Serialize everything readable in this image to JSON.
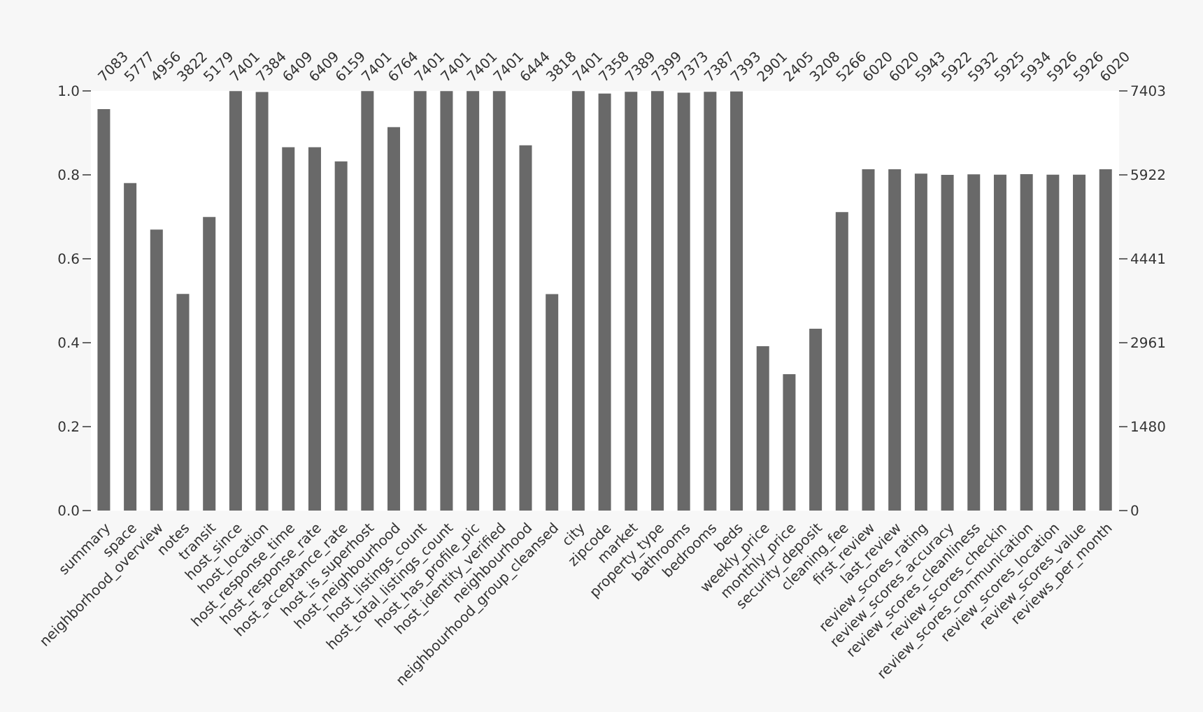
{
  "chart_data": {
    "type": "bar",
    "categories": [
      "summary",
      "space",
      "neighborhood_overview",
      "notes",
      "transit",
      "host_since",
      "host_location",
      "host_response_time",
      "host_response_rate",
      "host_acceptance_rate",
      "host_is_superhost",
      "host_neighbourhood",
      "host_listings_count",
      "host_total_listings_count",
      "host_has_profile_pic",
      "host_identity_verified",
      "neighbourhood",
      "neighbourhood_group_cleansed",
      "city",
      "zipcode",
      "market",
      "property_type",
      "bathrooms",
      "bedrooms",
      "beds",
      "weekly_price",
      "monthly_price",
      "security_deposit",
      "cleaning_fee",
      "first_review",
      "last_review",
      "review_scores_rating",
      "review_scores_accuracy",
      "review_scores_cleanliness",
      "review_scores_checkin",
      "review_scores_communication",
      "review_scores_location",
      "review_scores_value",
      "reviews_per_month"
    ],
    "series": [
      {
        "color": "#696969",
        "axis": "y2",
        "values": [
          7083,
          5777,
          4956,
          3822,
          5179,
          7401,
          7384,
          6409,
          6409,
          6159,
          7401,
          6764,
          7401,
          7401,
          7401,
          7401,
          6444,
          3818,
          7401,
          7358,
          7389,
          7399,
          7373,
          7387,
          7393,
          2901,
          2405,
          3208,
          5266,
          6020,
          6020,
          5943,
          5922,
          5932,
          5925,
          5934,
          5926,
          5926,
          6020
        ]
      }
    ],
    "ylim": [
      0,
      1
    ],
    "yticks": [
      {
        "value": 0,
        "label": "0.0"
      },
      {
        "value": 0.2,
        "label": "0.2"
      },
      {
        "value": 0.4,
        "label": "0.4"
      },
      {
        "value": 0.6,
        "label": "0.6"
      },
      {
        "value": 0.8,
        "label": "0.8"
      },
      {
        "value": 1,
        "label": "1.0"
      }
    ],
    "y2lim": [
      0,
      7403
    ],
    "y2ticks": [
      0,
      1480,
      2961,
      4441,
      5922,
      7403
    ],
    "data_labels": true
  }
}
